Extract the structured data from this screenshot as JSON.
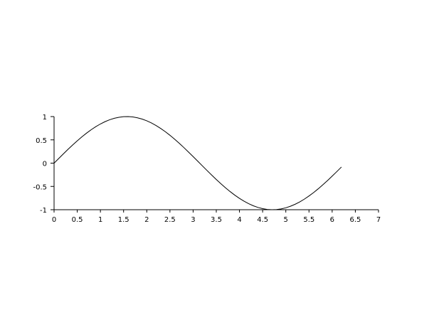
{
  "chart_data": {
    "type": "line",
    "title": "",
    "xlabel": "",
    "ylabel": "",
    "xlim": [
      0,
      7
    ],
    "ylim": [
      -1,
      1
    ],
    "grid": false,
    "x_ticks": [
      "0",
      "0.5",
      "1",
      "1.5",
      "2",
      "2.5",
      "3",
      "3.5",
      "4",
      "4.5",
      "5",
      "5.5",
      "6",
      "6.5",
      "7"
    ],
    "y_ticks": [
      "1",
      "0.5",
      "0",
      "-0.5",
      "-1"
    ],
    "line_color": "#000000",
    "series": [
      {
        "x": [
          0,
          0.1,
          0.2,
          0.3,
          0.4,
          0.5,
          0.6,
          0.7,
          0.8,
          0.9,
          1.0,
          1.1,
          1.2,
          1.3,
          1.4,
          1.5,
          1.6,
          1.7,
          1.8,
          1.9,
          2.0,
          2.1,
          2.2,
          2.3,
          2.4,
          2.5,
          2.6,
          2.7,
          2.8,
          2.9,
          3.0,
          3.1,
          3.2,
          3.3,
          3.4,
          3.5,
          3.6,
          3.7,
          3.8,
          3.9,
          4.0,
          4.1,
          4.2,
          4.3,
          4.4,
          4.5,
          4.6,
          4.7,
          4.8,
          4.9,
          5.0,
          5.1,
          5.2,
          5.3,
          5.4,
          5.5,
          5.6,
          5.7,
          5.8,
          5.9,
          6.0,
          6.1,
          6.2
        ],
        "y": [
          0,
          0.0998,
          0.1987,
          0.2955,
          0.3894,
          0.4794,
          0.5646,
          0.6442,
          0.7174,
          0.7833,
          0.8415,
          0.8912,
          0.932,
          0.9636,
          0.9854,
          0.9975,
          0.9996,
          0.9917,
          0.9738,
          0.9463,
          0.9093,
          0.8632,
          0.8085,
          0.7457,
          0.6755,
          0.5985,
          0.5155,
          0.4274,
          0.335,
          0.2392,
          0.1411,
          0.0416,
          -0.0584,
          -0.1577,
          -0.2555,
          -0.3508,
          -0.4425,
          -0.5298,
          -0.6119,
          -0.6878,
          -0.7568,
          -0.8183,
          -0.8716,
          -0.9162,
          -0.9516,
          -0.9775,
          -0.9937,
          -0.9999,
          -0.9962,
          -0.9825,
          -0.9589,
          -0.9258,
          -0.8835,
          -0.8323,
          -0.7728,
          -0.7055,
          -0.6313,
          -0.5507,
          -0.4646,
          -0.3739,
          -0.2794,
          -0.1822,
          -0.0831
        ]
      }
    ]
  }
}
